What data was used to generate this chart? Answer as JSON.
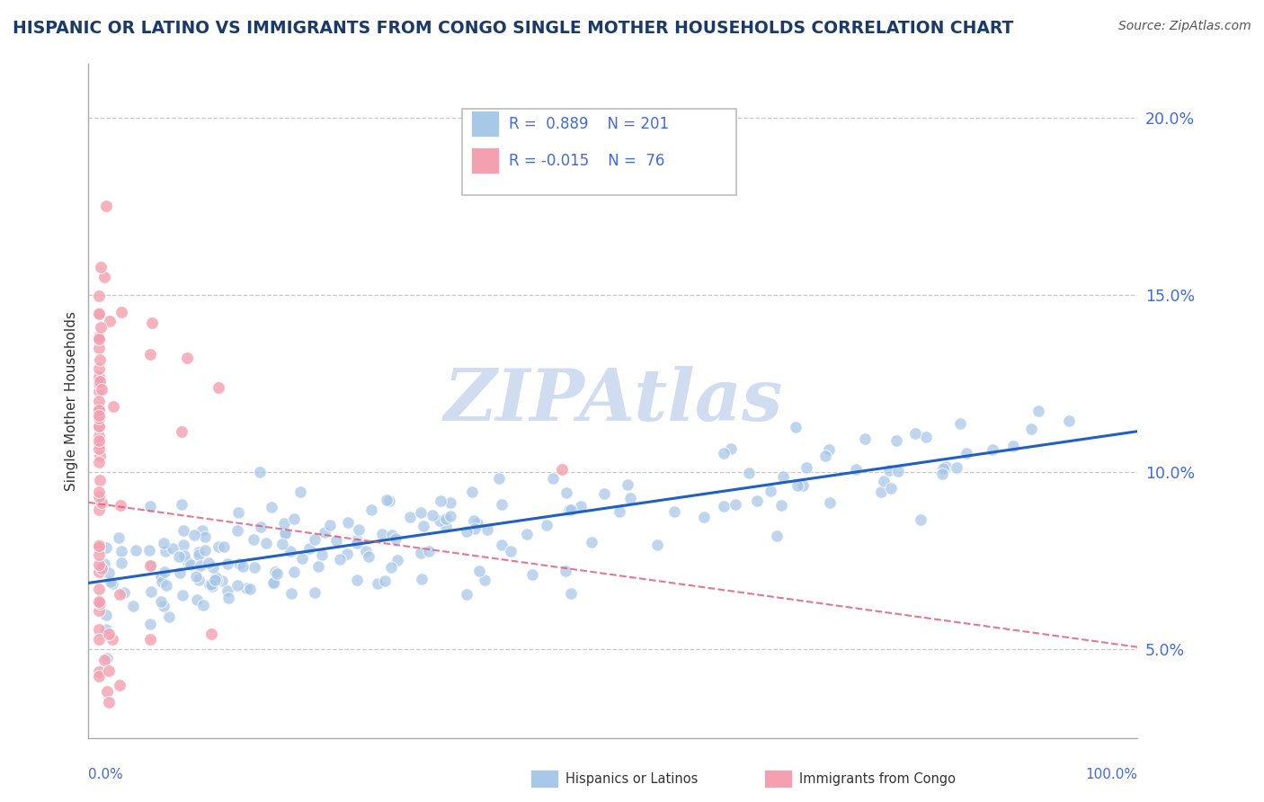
{
  "title": "HISPANIC OR LATINO VS IMMIGRANTS FROM CONGO SINGLE MOTHER HOUSEHOLDS CORRELATION CHART",
  "source": "Source: ZipAtlas.com",
  "ylabel": "Single Mother Households",
  "yticks": [
    "5.0%",
    "10.0%",
    "15.0%",
    "20.0%"
  ],
  "ytick_vals": [
    0.05,
    0.1,
    0.15,
    0.2
  ],
  "xlim": [
    -0.01,
    1.01
  ],
  "ylim": [
    0.025,
    0.215
  ],
  "blue_dot_color": "#A8C8E8",
  "pink_dot_color": "#F4A0B0",
  "blue_line_color": "#2060C0",
  "pink_line_color": "#E06080",
  "watermark_color": "#D0DCF0",
  "title_color": "#1a3a6b",
  "axis_label_color": "#4169E1",
  "grid_color": "#BBBBBB",
  "background_color": "#FFFFFF",
  "legend_r1_val": "0.889",
  "legend_n1_val": "201",
  "legend_r2_val": "-0.015",
  "legend_n2_val": "76"
}
